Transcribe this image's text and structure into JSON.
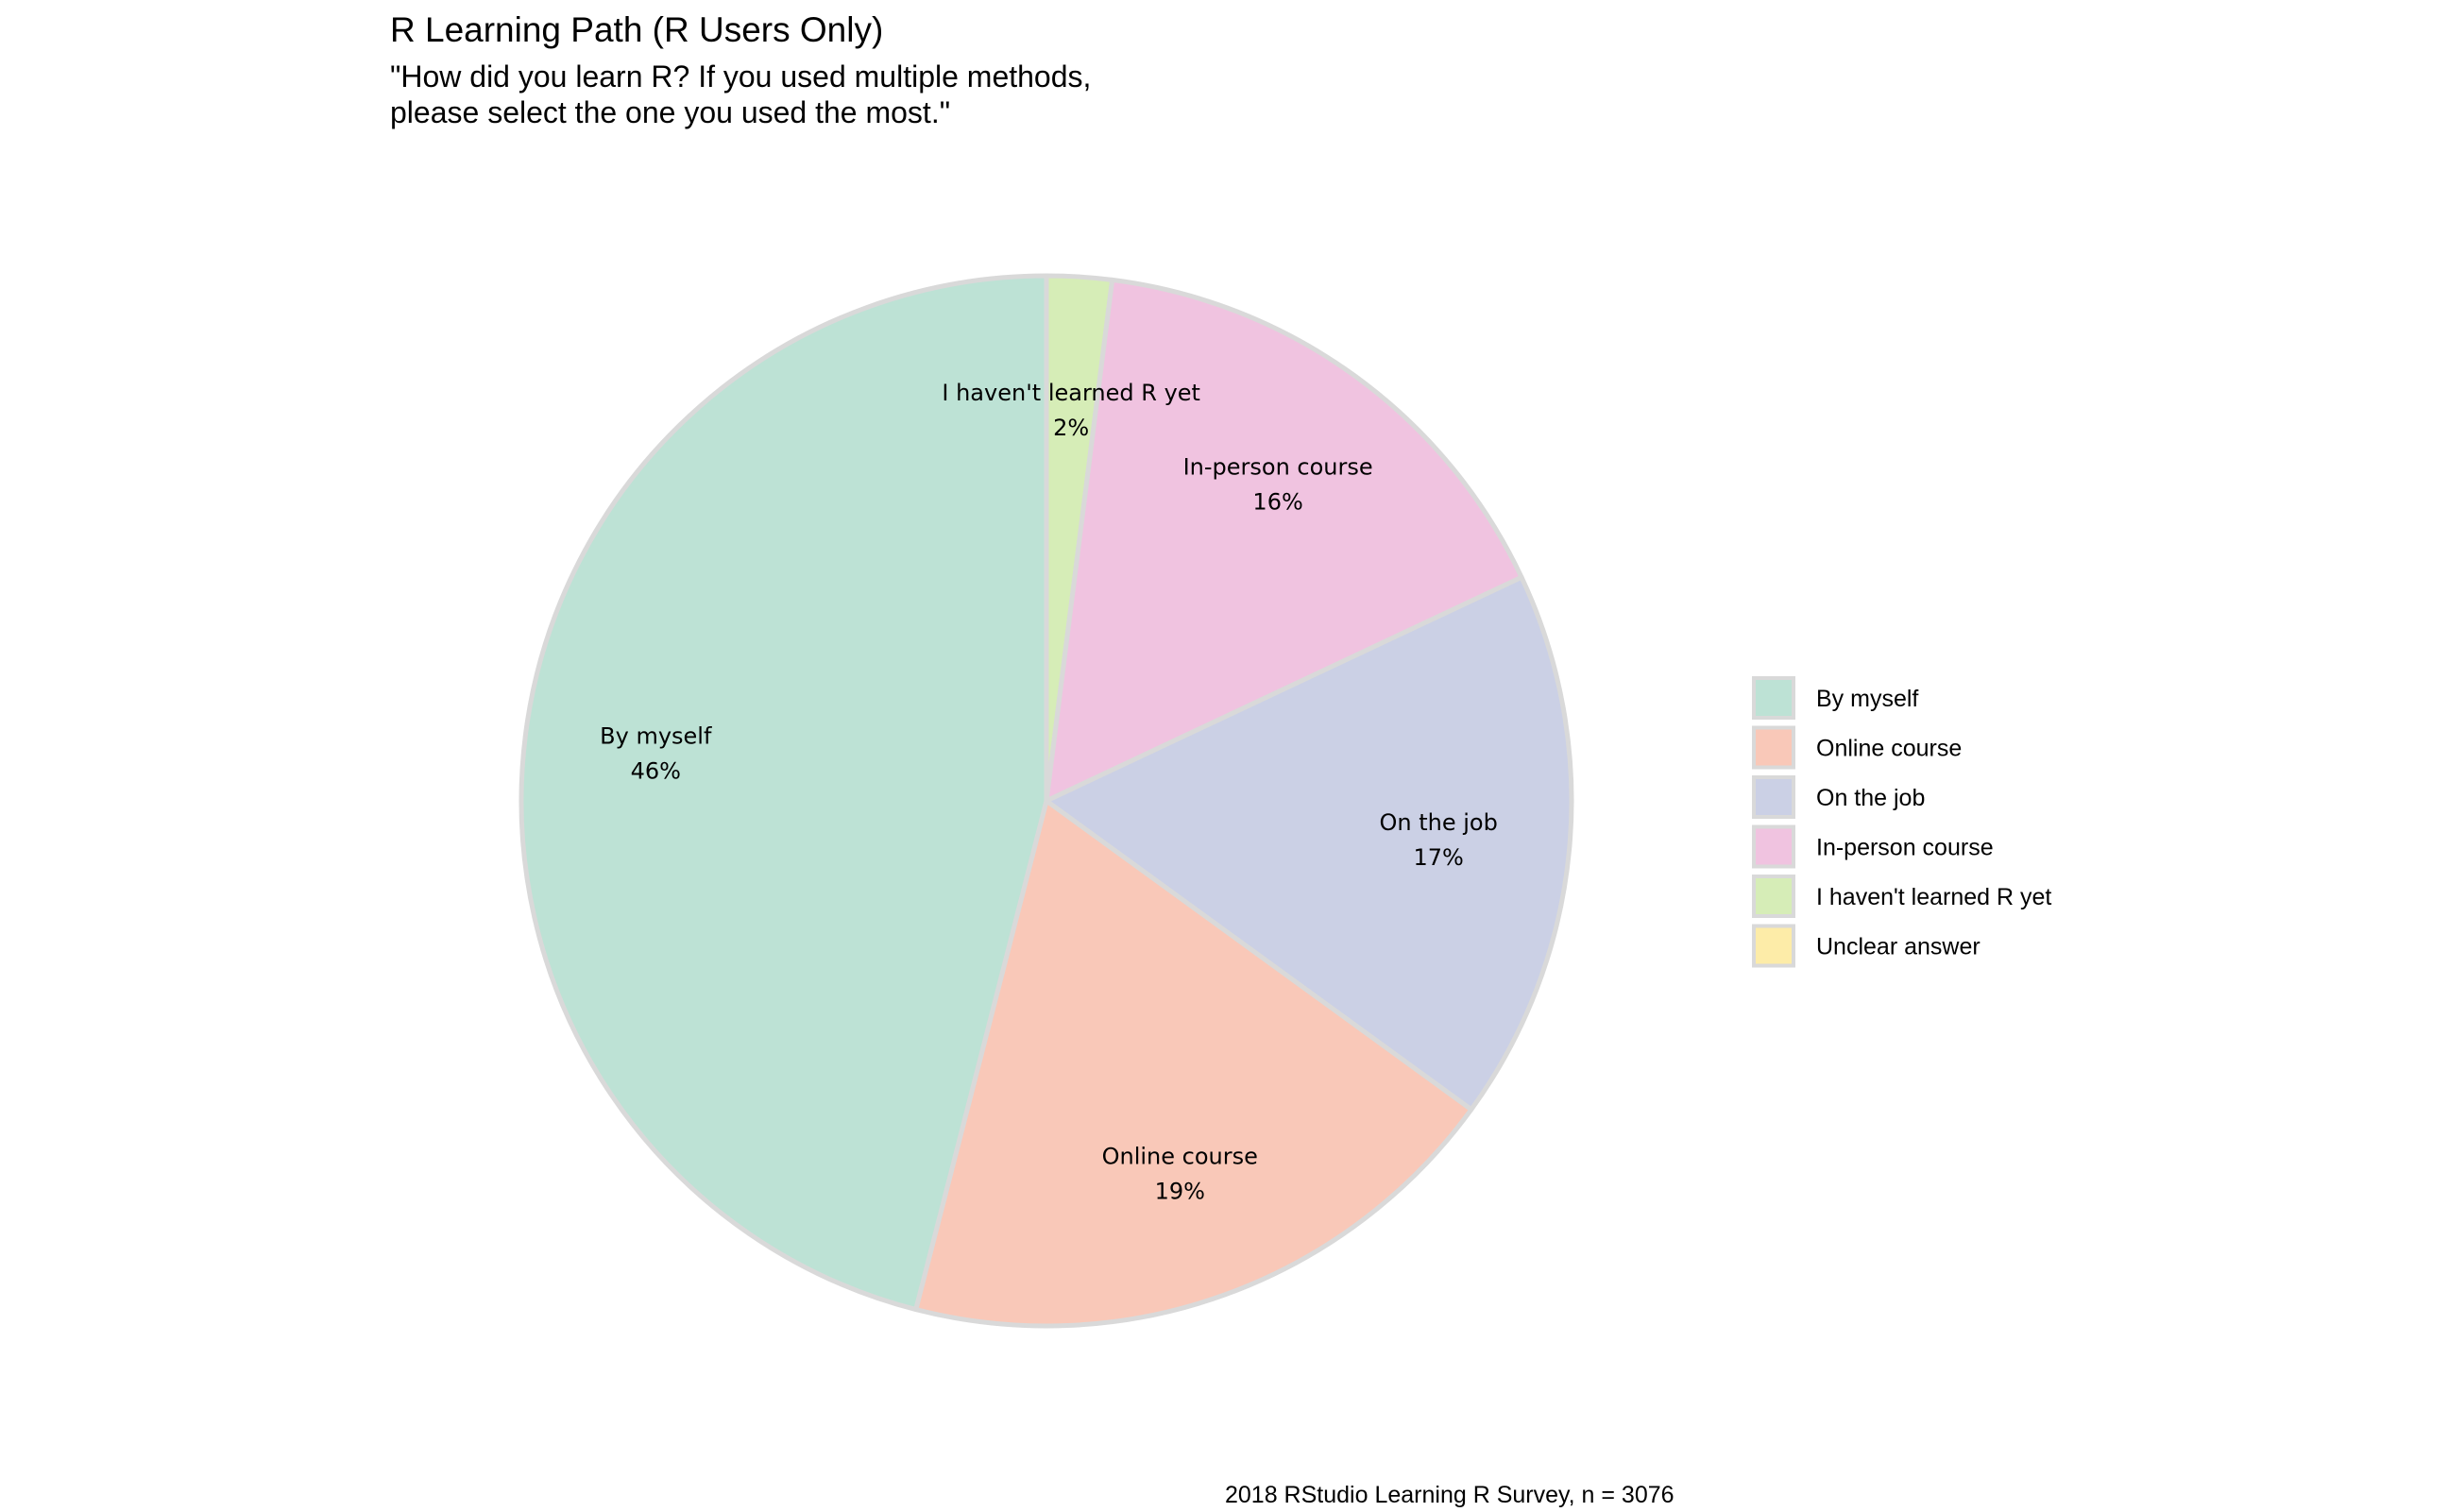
{
  "chart_data": {
    "type": "pie",
    "title": "R Learning Path  (R Users Only)",
    "subtitle_lines": [
      "\"How did you learn R? If you used multiple methods,",
      "please select the one you used the most.\""
    ],
    "caption": "2018 RStudio Learning R Survey, n = 3076",
    "slices": [
      {
        "label": "By myself",
        "value": 46,
        "value_label": "46%",
        "color": "#bde2d5"
      },
      {
        "label": "Online course",
        "value": 19,
        "value_label": "19%",
        "color": "#f9c8b8"
      },
      {
        "label": "On the job",
        "value": 17,
        "value_label": "17%",
        "color": "#cbd0e5"
      },
      {
        "label": "In-person course",
        "value": 16,
        "value_label": "16%",
        "color": "#f0c3e0"
      },
      {
        "label": "I haven't learned R yet",
        "value": 2,
        "value_label": "2%",
        "color": "#d6edb7"
      },
      {
        "label": "Unclear answer",
        "value": 0,
        "value_label": "",
        "color": "#fdeca8"
      }
    ],
    "legend_position": "right",
    "slice_border_color": "#d9d9d9",
    "grid": false
  }
}
